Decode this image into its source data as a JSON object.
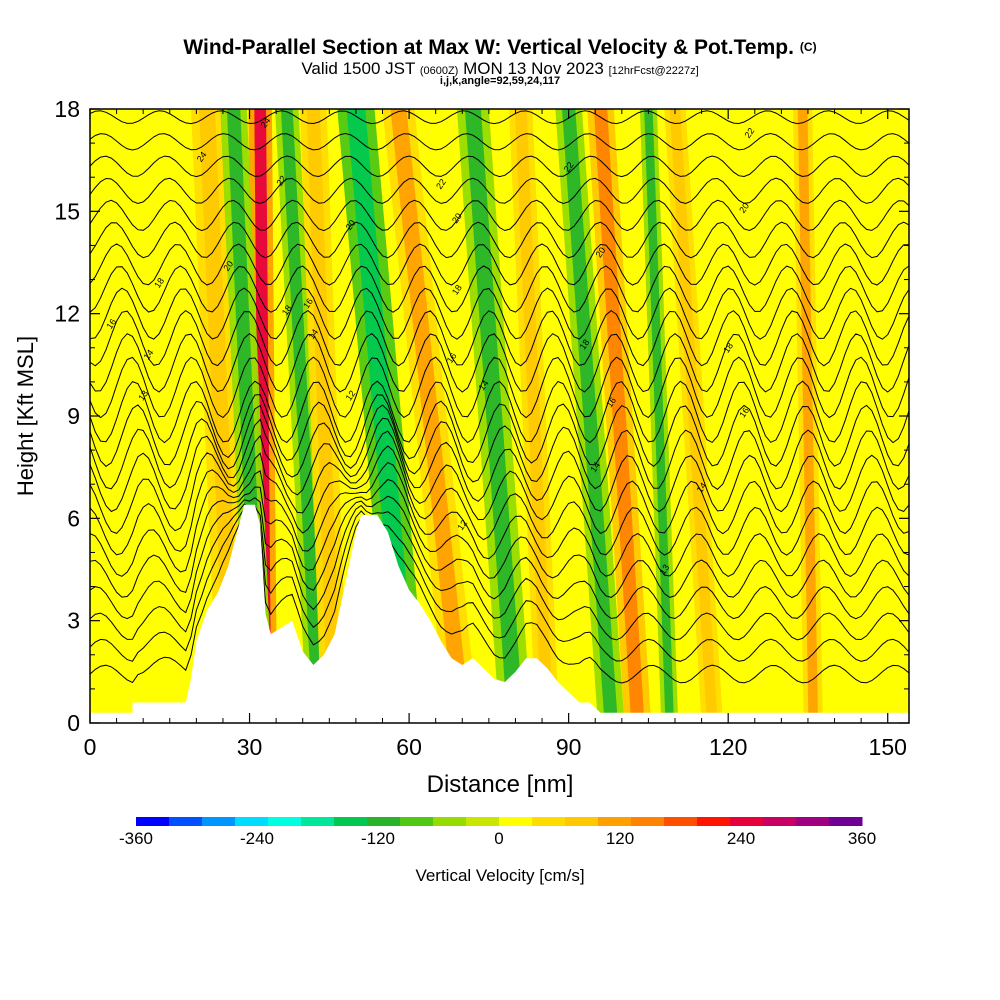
{
  "title": {
    "main": "Wind-Parallel Section at Max W: Vertical Velocity & Pot.Temp.",
    "mark": "(C)",
    "valid_prefix": "Valid 1500 JST",
    "valid_utc": "(0600Z)",
    "valid_date": "MON 13 Nov 2023",
    "forecast": "[12hrFcst@2227z]",
    "indices": "i,j,k,angle=92,59,24,117"
  },
  "chart_data": {
    "type": "heatmap",
    "xlabel": "Distance [nm]",
    "ylabel": "Height [Kft MSL]",
    "xlim": [
      0,
      154
    ],
    "ylim": [
      0,
      18
    ],
    "xticks": [
      0,
      30,
      60,
      90,
      120,
      150
    ],
    "yticks": [
      0,
      3,
      6,
      9,
      12,
      15,
      18
    ],
    "colorbar": {
      "label": "Vertical Velocity [cm/s]",
      "ticks": [
        -360,
        -240,
        -120,
        0,
        120,
        240,
        360
      ],
      "bounds": [
        -360,
        360
      ],
      "colors": [
        "#0000ff",
        "#0050ff",
        "#0096ff",
        "#00dcff",
        "#00ffe1",
        "#00e69b",
        "#00c850",
        "#28b428",
        "#50c814",
        "#96dc00",
        "#c8e600",
        "#ffff00",
        "#ffdc00",
        "#ffc800",
        "#ffa000",
        "#ff8200",
        "#ff5000",
        "#ff1400",
        "#e6003c",
        "#c80064",
        "#a00080",
        "#6e0096"
      ]
    },
    "terrain_profile": [
      [
        0,
        0.3
      ],
      [
        8,
        0.3
      ],
      [
        8,
        0.6
      ],
      [
        18,
        0.6
      ],
      [
        19,
        1.3
      ],
      [
        20,
        2.4
      ],
      [
        22,
        3.3
      ],
      [
        24,
        3.8
      ],
      [
        26,
        4.6
      ],
      [
        28,
        5.8
      ],
      [
        29,
        6.4
      ],
      [
        31,
        6.4
      ],
      [
        32,
        5.8
      ],
      [
        33,
        3.2
      ],
      [
        34,
        2.6
      ],
      [
        36,
        2.8
      ],
      [
        38,
        3.0
      ],
      [
        40,
        2.1
      ],
      [
        42,
        1.7
      ],
      [
        44,
        2.0
      ],
      [
        46,
        2.6
      ],
      [
        48,
        4.1
      ],
      [
        50,
        5.6
      ],
      [
        51,
        6.1
      ],
      [
        54,
        6.1
      ],
      [
        56,
        5.6
      ],
      [
        58,
        4.6
      ],
      [
        60,
        3.9
      ],
      [
        62,
        3.5
      ],
      [
        64,
        3.0
      ],
      [
        66,
        2.4
      ],
      [
        68,
        1.9
      ],
      [
        70,
        1.7
      ],
      [
        72,
        1.9
      ],
      [
        74,
        1.6
      ],
      [
        76,
        1.3
      ],
      [
        78,
        1.2
      ],
      [
        80,
        1.5
      ],
      [
        82,
        1.9
      ],
      [
        84,
        1.9
      ],
      [
        86,
        1.6
      ],
      [
        88,
        1.2
      ],
      [
        90,
        0.9
      ],
      [
        92,
        0.6
      ],
      [
        94,
        0.6
      ],
      [
        96,
        0.3
      ],
      [
        154,
        0.3
      ]
    ],
    "velocity_bands": [
      {
        "w": 70,
        "x_bottom": 27,
        "x_top": 22,
        "width": 3.0
      },
      {
        "w": 230,
        "x_bottom": 33,
        "x_top": 32,
        "width": 2.2
      },
      {
        "w": -130,
        "x_bottom": 32,
        "x_top": 27,
        "width": 2.5
      },
      {
        "w": -110,
        "x_bottom": 43,
        "x_top": 37,
        "width": 2.2
      },
      {
        "w": 80,
        "x_bottom": 46,
        "x_top": 42,
        "width": 2.5
      },
      {
        "w": -150,
        "x_bottom": 60,
        "x_top": 50,
        "width": 3.5
      },
      {
        "w": 110,
        "x_bottom": 70,
        "x_top": 58,
        "width": 3.0
      },
      {
        "w": -120,
        "x_bottom": 80,
        "x_top": 72,
        "width": 3.0
      },
      {
        "w": 90,
        "x_bottom": 86,
        "x_top": 81,
        "width": 2.2
      },
      {
        "w": -130,
        "x_bottom": 98,
        "x_top": 90,
        "width": 2.5
      },
      {
        "w": 140,
        "x_bottom": 103,
        "x_top": 96,
        "width": 2.5
      },
      {
        "w": -120,
        "x_bottom": 109,
        "x_top": 105,
        "width": 1.6
      },
      {
        "w": 90,
        "x_bottom": 117,
        "x_top": 110,
        "width": 2.0
      },
      {
        "w": 110,
        "x_bottom": 136,
        "x_top": 134,
        "width": 1.8
      }
    ],
    "isentrope_labels": [
      {
        "value": "24",
        "x": 33,
        "y": 17.6
      },
      {
        "value": "24",
        "x": 21,
        "y": 16.6
      },
      {
        "value": "22",
        "x": 36,
        "y": 15.9
      },
      {
        "value": "22",
        "x": 66,
        "y": 15.8
      },
      {
        "value": "22",
        "x": 90,
        "y": 16.3
      },
      {
        "value": "22",
        "x": 124,
        "y": 17.3
      },
      {
        "value": "20",
        "x": 26,
        "y": 13.4
      },
      {
        "value": "20",
        "x": 49,
        "y": 14.6
      },
      {
        "value": "20",
        "x": 69,
        "y": 14.8
      },
      {
        "value": "20",
        "x": 96,
        "y": 13.8
      },
      {
        "value": "20",
        "x": 123,
        "y": 15.1
      },
      {
        "value": "18",
        "x": 13,
        "y": 12.9
      },
      {
        "value": "18",
        "x": 37,
        "y": 12.1
      },
      {
        "value": "18",
        "x": 69,
        "y": 12.7
      },
      {
        "value": "18",
        "x": 93,
        "y": 11.1
      },
      {
        "value": "18",
        "x": 120,
        "y": 11.0
      },
      {
        "value": "16",
        "x": 4,
        "y": 11.7
      },
      {
        "value": "16",
        "x": 41,
        "y": 12.3
      },
      {
        "value": "16",
        "x": 68,
        "y": 10.7
      },
      {
        "value": "16",
        "x": 98,
        "y": 9.4
      },
      {
        "value": "16",
        "x": 123,
        "y": 9.1
      },
      {
        "value": "14",
        "x": 11,
        "y": 10.8
      },
      {
        "value": "14",
        "x": 42,
        "y": 11.4
      },
      {
        "value": "14",
        "x": 74,
        "y": 9.9
      },
      {
        "value": "14",
        "x": 95,
        "y": 7.5
      },
      {
        "value": "14",
        "x": 115,
        "y": 6.9
      },
      {
        "value": "13",
        "x": 10,
        "y": 9.6
      },
      {
        "value": "12",
        "x": 49,
        "y": 9.6
      },
      {
        "value": "12",
        "x": 70,
        "y": 5.8
      },
      {
        "value": "13",
        "x": 108,
        "y": 4.5
      }
    ]
  }
}
